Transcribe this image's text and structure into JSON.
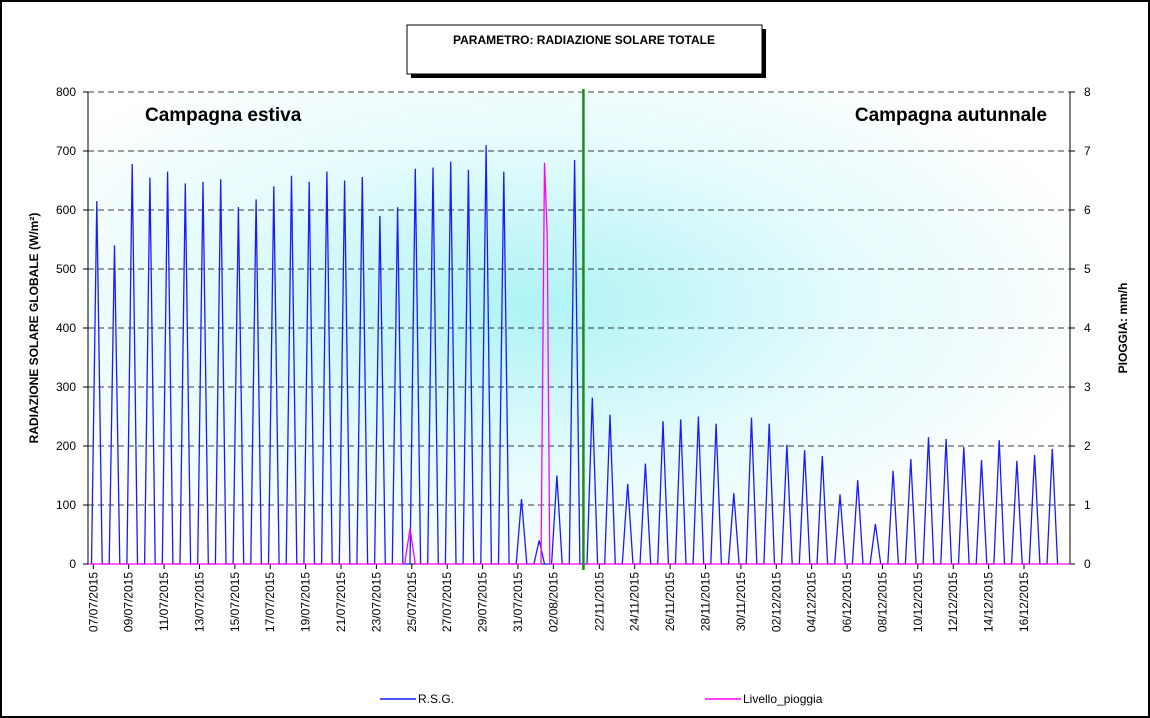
{
  "chart_data": {
    "type": "line",
    "title": "PARAMETRO: RADIAZIONE SOLARE TOTALE",
    "y_label": "RADIAZIONE SOLARE GLOBALE (W/m²)",
    "y2_label": "PIOGGIA: mm/h",
    "annotations": [
      {
        "text": "Campagna estiva",
        "color": "#ff1a1a"
      },
      {
        "text": "Campagna autunnale",
        "color": "#1a1acc"
      }
    ],
    "divider": {
      "x": 28,
      "color": "#1f8a1f"
    },
    "xlim": [
      0,
      55.5
    ],
    "xticks": [
      {
        "value": 0.3,
        "label": "07/07/2015"
      },
      {
        "value": 2.3,
        "label": "09/07/2015"
      },
      {
        "value": 4.3,
        "label": "11/07/2015"
      },
      {
        "value": 6.3,
        "label": "13/07/2015"
      },
      {
        "value": 8.3,
        "label": "15/07/2015"
      },
      {
        "value": 10.3,
        "label": "17/07/2015"
      },
      {
        "value": 12.3,
        "label": "19/07/2015"
      },
      {
        "value": 14.3,
        "label": "21/07/2015"
      },
      {
        "value": 16.3,
        "label": "23/07/2015"
      },
      {
        "value": 18.3,
        "label": "25/07/2015"
      },
      {
        "value": 20.3,
        "label": "27/07/2015"
      },
      {
        "value": 22.3,
        "label": "29/07/2015"
      },
      {
        "value": 24.3,
        "label": "31/07/2015"
      },
      {
        "value": 26.3,
        "label": "02/08/2015"
      },
      {
        "value": 28.9,
        "label": "22/11/2015"
      },
      {
        "value": 30.9,
        "label": "24/11/2015"
      },
      {
        "value": 32.9,
        "label": "26/11/2015"
      },
      {
        "value": 34.9,
        "label": "28/11/2015"
      },
      {
        "value": 36.9,
        "label": "30/11/2015"
      },
      {
        "value": 38.9,
        "label": "02/12/2015"
      },
      {
        "value": 40.9,
        "label": "04/12/2015"
      },
      {
        "value": 42.9,
        "label": "06/12/2015"
      },
      {
        "value": 44.9,
        "label": "08/12/2015"
      },
      {
        "value": 46.9,
        "label": "10/12/2015"
      },
      {
        "value": 48.9,
        "label": "12/12/2015"
      },
      {
        "value": 50.9,
        "label": "14/12/2015"
      },
      {
        "value": 52.9,
        "label": "16/12/2015"
      }
    ],
    "ylim": [
      0,
      800
    ],
    "yticks": [
      0,
      100,
      200,
      300,
      400,
      500,
      600,
      700,
      800
    ],
    "y2lim": [
      0,
      8
    ],
    "y2ticks": [
      0,
      1,
      2,
      3,
      4,
      5,
      6,
      7,
      8
    ],
    "grid": true,
    "series": [
      {
        "name": "R.S.G.",
        "color": "#1a1aff",
        "x": [
          0.2,
          0.5,
          0.8,
          1.2,
          1.5,
          1.8,
          2.2,
          2.5,
          2.8,
          3.2,
          3.5,
          3.8,
          4.2,
          4.5,
          4.8,
          5.2,
          5.5,
          5.8,
          6.2,
          6.5,
          6.8,
          7.2,
          7.5,
          7.8,
          8.2,
          8.5,
          8.8,
          9.2,
          9.5,
          9.8,
          10.2,
          10.5,
          10.8,
          11.2,
          11.5,
          11.8,
          12.2,
          12.5,
          12.8,
          13.2,
          13.5,
          13.8,
          14.2,
          14.5,
          14.8,
          15.2,
          15.5,
          15.8,
          16.2,
          16.5,
          16.8,
          17.2,
          17.5,
          17.8,
          18.2,
          18.5,
          18.8,
          19.2,
          19.5,
          19.8,
          20.2,
          20.5,
          20.8,
          21.2,
          21.5,
          21.8,
          22.2,
          22.5,
          22.8,
          23.2,
          23.5,
          23.8,
          24.2,
          24.5,
          24.8,
          25.2,
          25.5,
          25.8,
          26.2,
          26.5,
          26.8,
          27.2,
          27.5,
          27.8,
          28.2,
          28.5,
          28.8,
          29.2,
          29.5,
          29.8,
          30.2,
          30.5,
          30.8,
          31.2,
          31.5,
          31.8,
          32.2,
          32.5,
          32.8,
          33.2,
          33.5,
          33.8,
          34.2,
          34.5,
          34.8,
          35.2,
          35.5,
          35.8,
          36.2,
          36.5,
          36.8,
          37.2,
          37.5,
          37.8,
          38.2,
          38.5,
          38.8,
          39.2,
          39.5,
          39.8,
          40.2,
          40.5,
          40.8,
          41.2,
          41.5,
          41.8,
          42.2,
          42.5,
          42.8,
          43.2,
          43.5,
          43.8,
          44.2,
          44.5,
          44.8,
          45.2,
          45.5,
          45.8,
          46.2,
          46.5,
          46.8,
          47.2,
          47.5,
          47.8,
          48.2,
          48.5,
          48.8,
          49.2,
          49.5,
          49.8,
          50.2,
          50.5,
          50.8,
          51.2,
          51.5,
          51.8,
          52.2,
          52.5,
          52.8,
          53.2,
          53.5,
          53.8,
          54.2,
          54.5,
          54.8
        ],
        "values": [
          0,
          615,
          0,
          0,
          540,
          0,
          0,
          678,
          0,
          0,
          655,
          0,
          0,
          665,
          0,
          0,
          645,
          0,
          0,
          648,
          0,
          0,
          652,
          0,
          0,
          605,
          0,
          0,
          618,
          0,
          0,
          640,
          0,
          0,
          658,
          0,
          0,
          648,
          0,
          0,
          665,
          0,
          0,
          650,
          0,
          0,
          656,
          0,
          0,
          590,
          0,
          0,
          605,
          0,
          0,
          670,
          0,
          0,
          672,
          0,
          0,
          682,
          0,
          0,
          668,
          0,
          0,
          710,
          0,
          0,
          665,
          0,
          0,
          110,
          0,
          0,
          40,
          0,
          0,
          150,
          0,
          0,
          685,
          0,
          0,
          282,
          0,
          0,
          253,
          0,
          0,
          136,
          0,
          0,
          170,
          0,
          0,
          242,
          0,
          0,
          245,
          0,
          0,
          250,
          0,
          0,
          238,
          0,
          0,
          120,
          0,
          0,
          248,
          0,
          0,
          238,
          0,
          0,
          202,
          0,
          0,
          193,
          0,
          0,
          183,
          0,
          0,
          118,
          0,
          0,
          142,
          0,
          0,
          68,
          0,
          0,
          158,
          0,
          0,
          178,
          0,
          0,
          215,
          0,
          0,
          212,
          0,
          0,
          198,
          0,
          0,
          176,
          0,
          0,
          210,
          0,
          0,
          175,
          0,
          0,
          185,
          0,
          0,
          195,
          0
        ]
      },
      {
        "name": "Livello_pioggia",
        "color": "#ff00ff",
        "axis": "y2",
        "x": [
          0,
          17.9,
          18.2,
          18.5,
          25.6,
          25.8,
          25.95,
          26.1,
          26.4,
          55.5
        ],
        "values": [
          0,
          0,
          0.6,
          0,
          0,
          6.8,
          5.6,
          0,
          0,
          0
        ]
      }
    ]
  }
}
